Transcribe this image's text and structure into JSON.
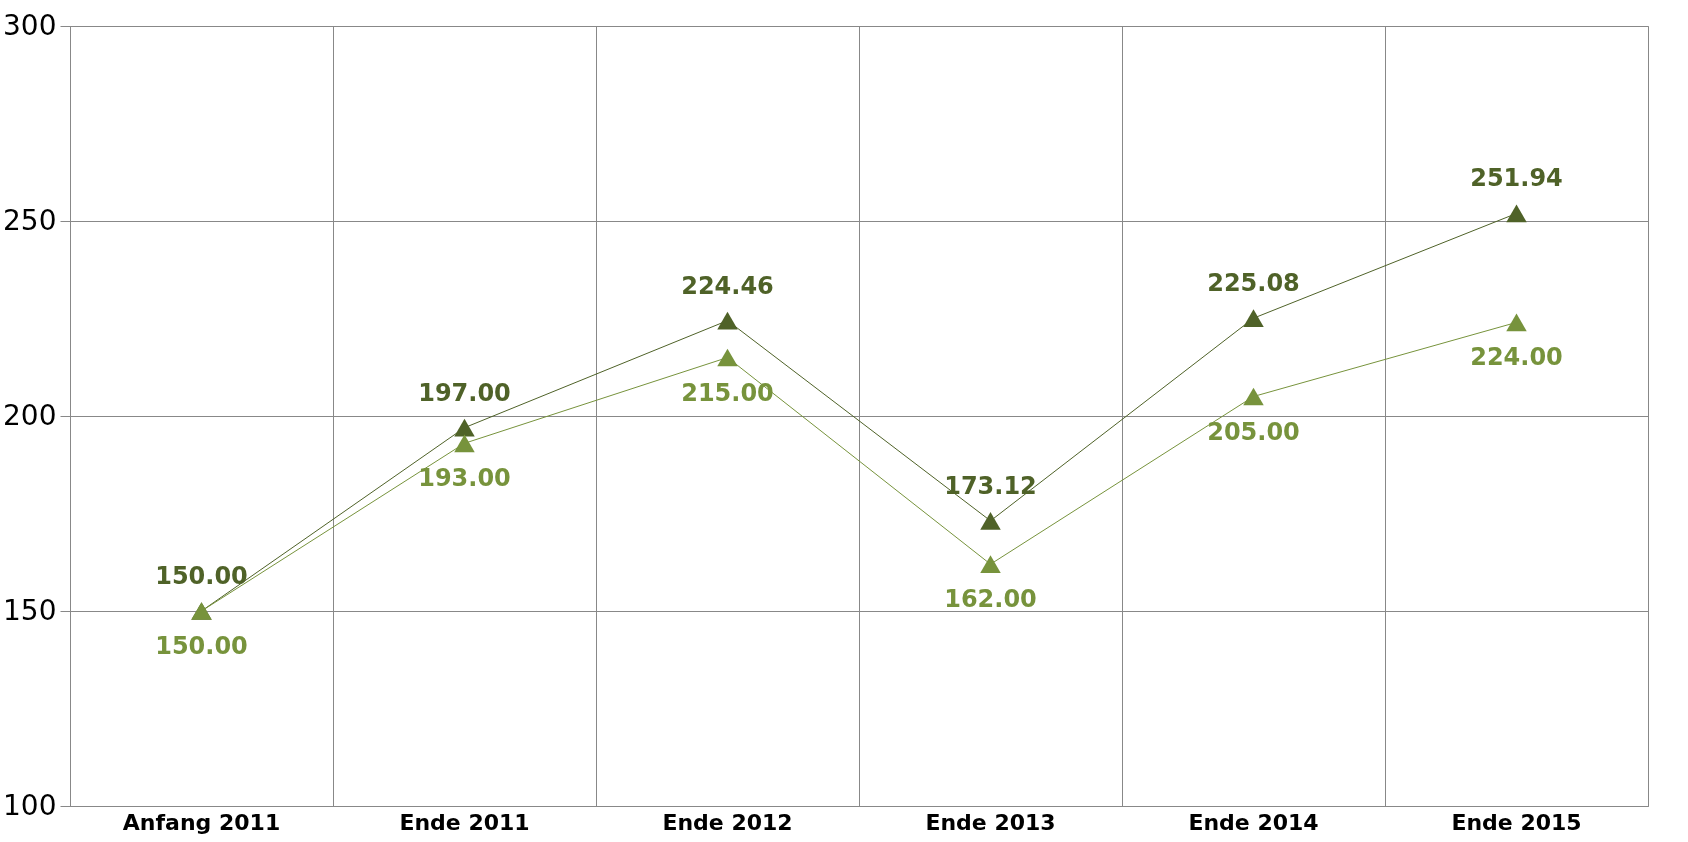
{
  "chart_data": {
    "type": "line",
    "categories": [
      "Anfang 2011",
      "Ende 2011",
      "Ende 2012",
      "Ende 2013",
      "Ende 2014",
      "Ende 2015"
    ],
    "series": [
      {
        "color": "#4f6228",
        "values": [
          150,
          197,
          224.46,
          173.12,
          225.08,
          251.94
        ],
        "value_labels": [
          "150.00",
          "197.00",
          "224.46",
          "173.12",
          "225.08",
          "251.94"
        ]
      },
      {
        "color": "#77933c",
        "values": [
          150,
          193,
          215,
          162,
          205,
          224
        ],
        "value_labels": [
          "150.00",
          "193.00",
          "215.00",
          "162.00",
          "205.00",
          "224.00"
        ]
      }
    ],
    "ylim": [
      100,
      300
    ],
    "yticks": [
      100,
      150,
      200,
      250,
      300
    ],
    "grid": true,
    "marker": "triangle",
    "line_style": "solid"
  }
}
